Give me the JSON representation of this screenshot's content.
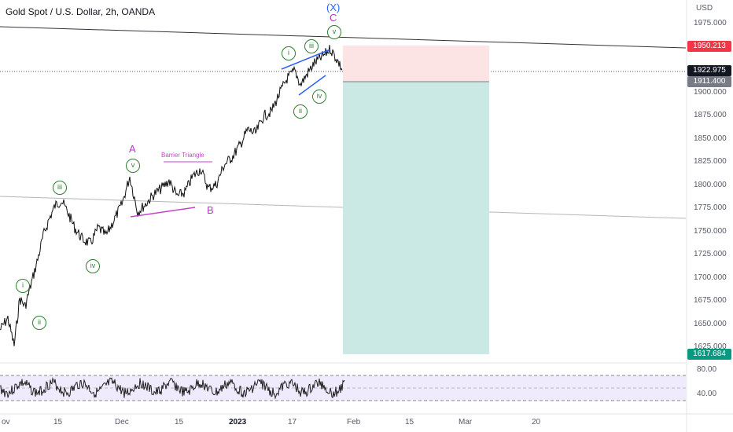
{
  "header": {
    "title": "Gold Spot / U.S. Dollar, 2h, OANDA",
    "currency": "USD"
  },
  "price_axis": {
    "labels": [
      "1975.000",
      "1950.213",
      "1922.975",
      "1911.400",
      "1900.000",
      "1875.000",
      "1850.000",
      "1825.000",
      "1800.000",
      "1775.000",
      "1750.000",
      "1725.000",
      "1700.000",
      "1675.000",
      "1650.000",
      "1625.000",
      "1617.684"
    ],
    "stop_level": "1950.213",
    "current_price": "1922.975",
    "entry_level": "1911.400",
    "target_level": "1617.684"
  },
  "rsi_axis": {
    "labels": [
      "80.00",
      "40.00"
    ]
  },
  "time_axis": {
    "labels": [
      "ov",
      "15",
      "Dec",
      "15",
      "2023",
      "17",
      "Feb",
      "15",
      "Mar",
      "20"
    ]
  },
  "annotations": {
    "waves": [
      "i",
      "ii",
      "iii",
      "iv",
      "v",
      "i",
      "ii",
      "iii",
      "iv",
      "v"
    ],
    "corrective": [
      "A",
      "B",
      "C",
      "(X)"
    ],
    "barrier_label": "Barrier Triangle"
  },
  "colors": {
    "stop_zone": "#fde4e4",
    "target_zone": "#cbe9e4",
    "stop_badge": "#f23645",
    "target_badge": "#089981",
    "current_badge": "#131722",
    "entry_badge": "#787b86",
    "wave_green": "#2e7d32",
    "letter_purple": "#b03ac4",
    "x_blue": "#2962ff"
  }
}
